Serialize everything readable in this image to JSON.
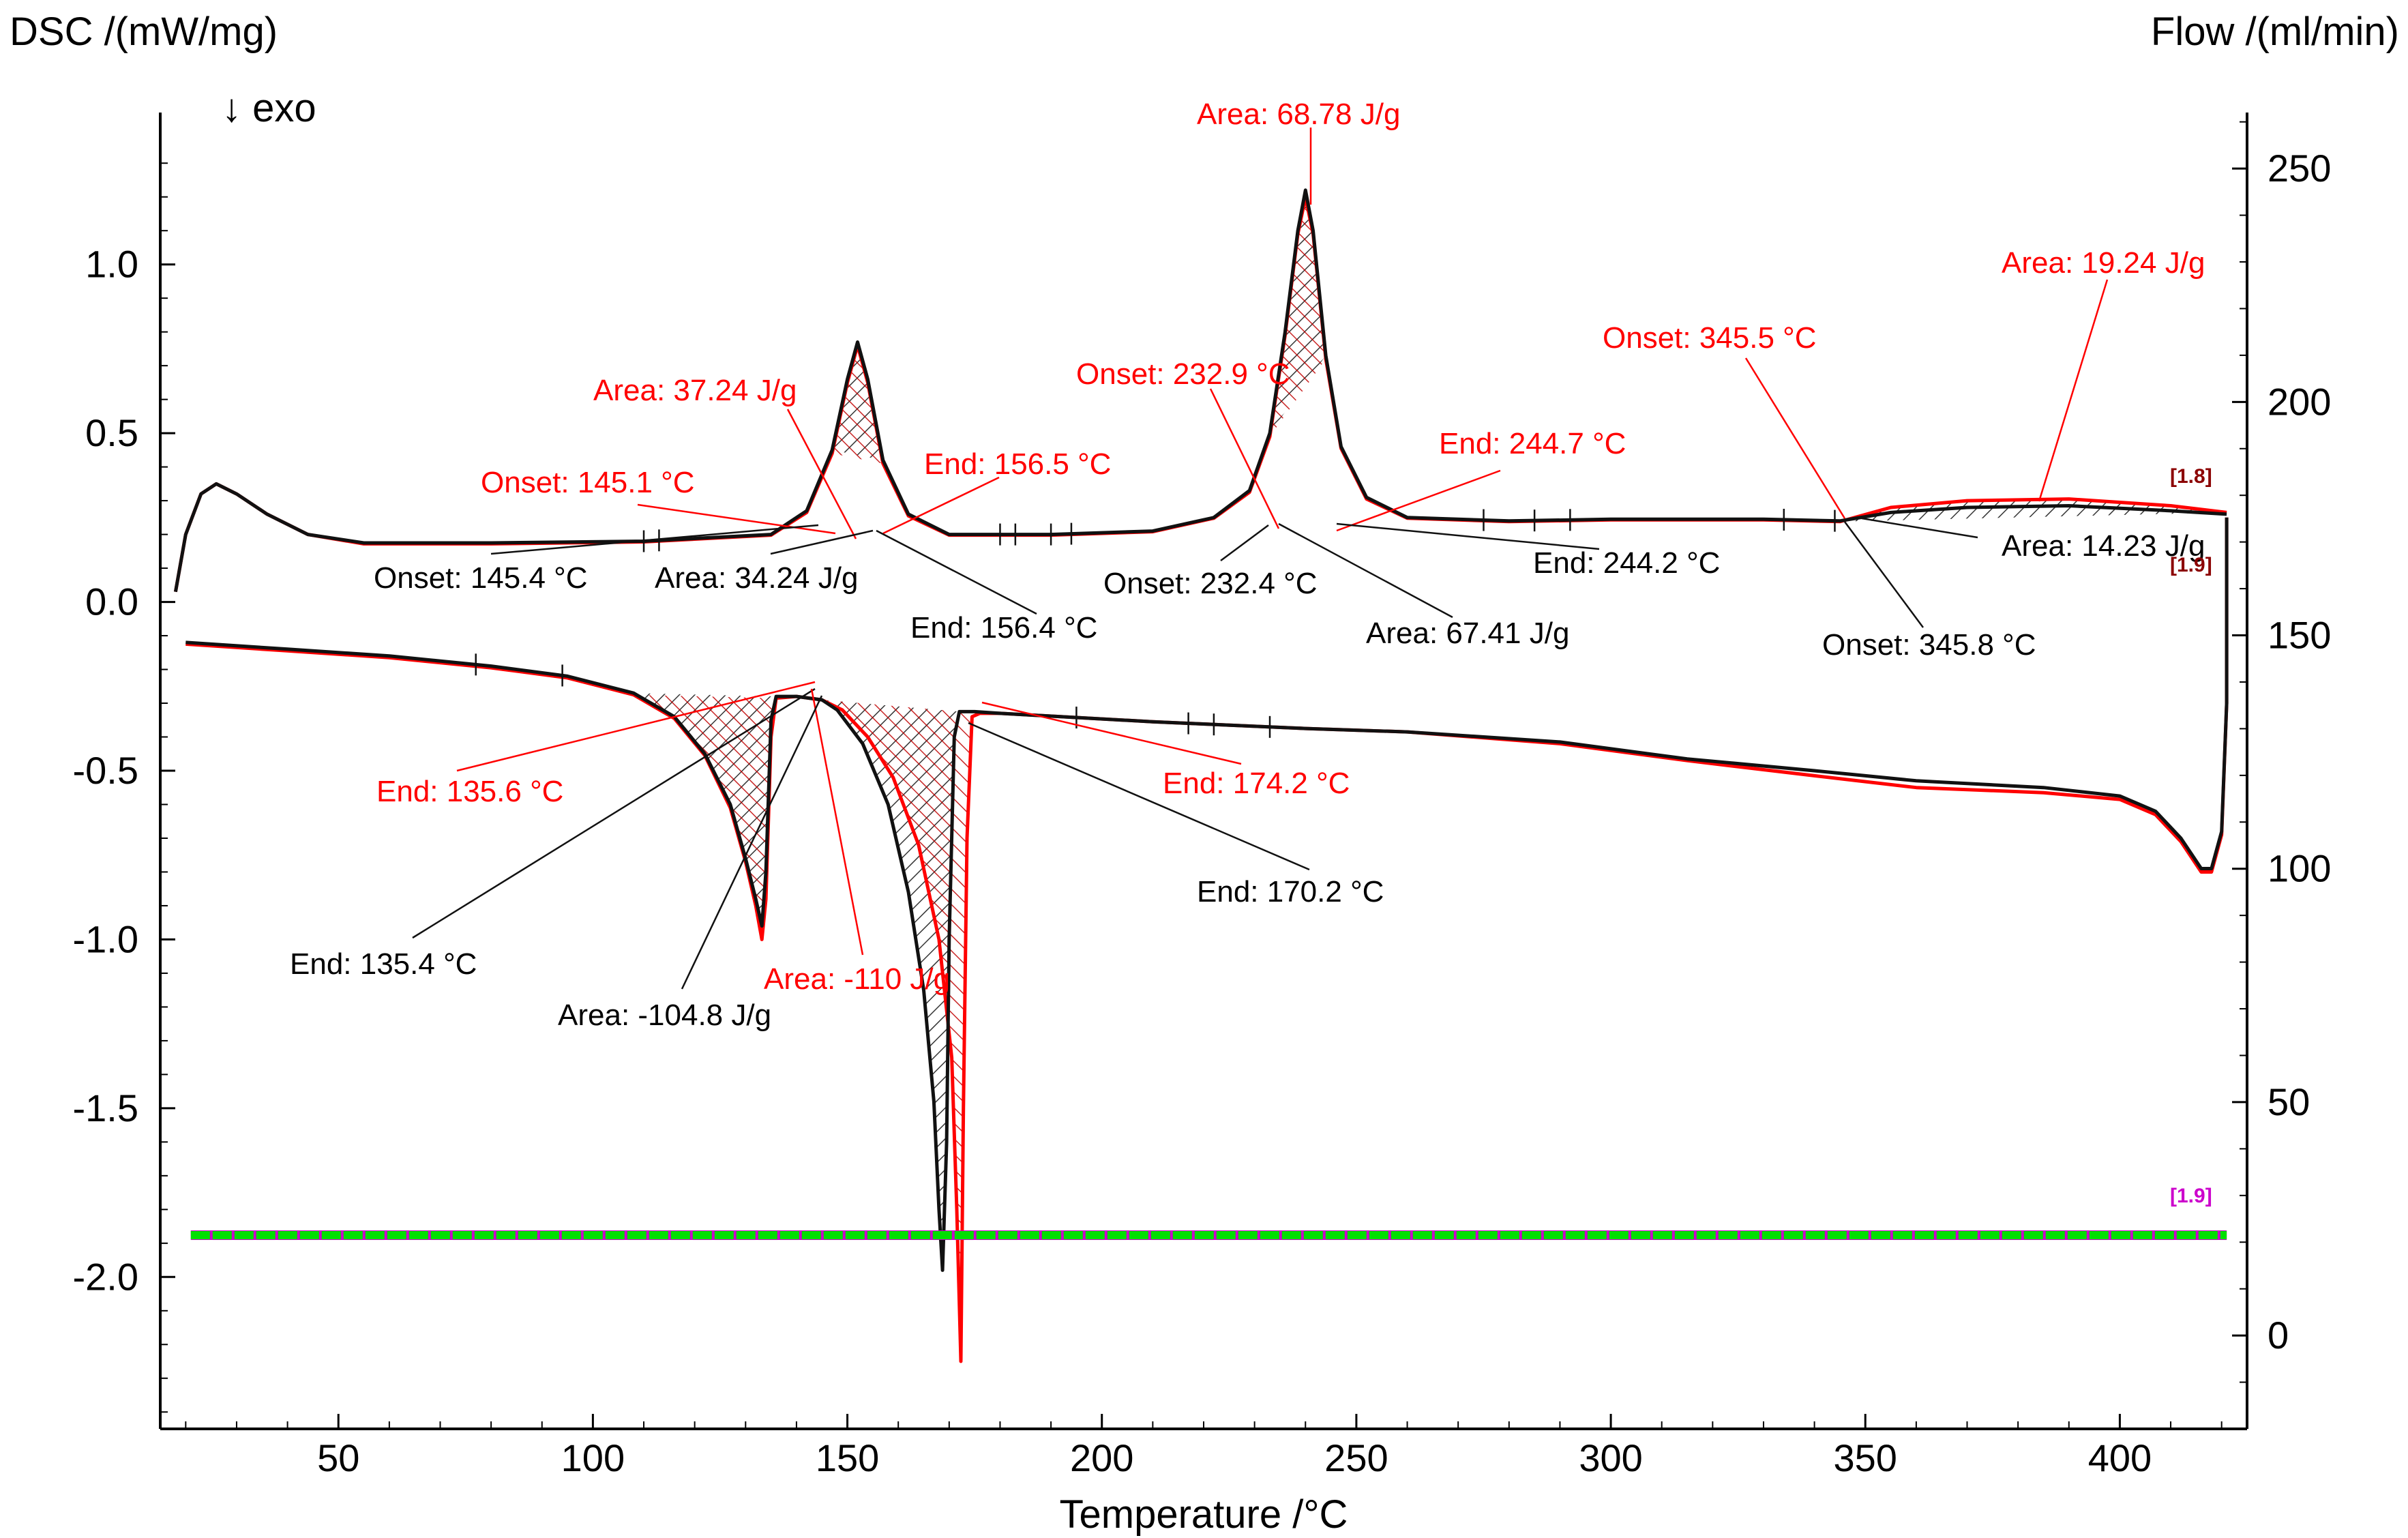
{
  "chart_data": {
    "type": "line",
    "title": "",
    "xlabel": "Temperature /°C",
    "ylabel_left": "DSC /(mW/mg)",
    "ylabel_right": "Flow /(ml/min)",
    "exo_marker": "↓ exo",
    "xlim": [
      15,
      425
    ],
    "ylim_left": [
      -2.45,
      1.45
    ],
    "ylim_right": [
      -20,
      262
    ],
    "x_ticks": [
      "50",
      "100",
      "150",
      "200",
      "250",
      "300",
      "350",
      "400"
    ],
    "x_tick_values": [
      50,
      100,
      150,
      200,
      250,
      300,
      350,
      400
    ],
    "y_left_ticks": [
      "1.0",
      "0.5",
      "0.0",
      "-0.5",
      "-1.0",
      "-1.5",
      "-2.0"
    ],
    "y_left_tick_values": [
      1.0,
      0.5,
      0.0,
      -0.5,
      -1.0,
      -1.5,
      -2.0
    ],
    "y_right_ticks": [
      "250",
      "200",
      "150",
      "100",
      "50",
      "0"
    ],
    "y_right_tick_values": [
      250,
      200,
      150,
      100,
      50,
      0
    ],
    "colors": {
      "black": "#111111",
      "red": "#ff0000",
      "green": "#00e000",
      "magenta": "#ff00ff"
    },
    "series": [
      {
        "name": "heating-black",
        "color": "#111111",
        "points": [
          [
            18,
            0.03
          ],
          [
            20,
            0.2
          ],
          [
            23,
            0.32
          ],
          [
            26,
            0.35
          ],
          [
            30,
            0.32
          ],
          [
            36,
            0.26
          ],
          [
            44,
            0.2
          ],
          [
            55,
            0.175
          ],
          [
            80,
            0.175
          ],
          [
            110,
            0.18
          ],
          [
            135,
            0.2
          ],
          [
            142,
            0.27
          ],
          [
            147,
            0.45
          ],
          [
            150,
            0.66
          ],
          [
            152,
            0.77
          ],
          [
            154,
            0.66
          ],
          [
            157,
            0.42
          ],
          [
            162,
            0.26
          ],
          [
            170,
            0.2
          ],
          [
            190,
            0.2
          ],
          [
            210,
            0.21
          ],
          [
            222,
            0.25
          ],
          [
            229,
            0.33
          ],
          [
            233,
            0.5
          ],
          [
            236,
            0.8
          ],
          [
            238.5,
            1.1
          ],
          [
            240,
            1.22
          ],
          [
            241.5,
            1.1
          ],
          [
            244,
            0.73
          ],
          [
            247,
            0.46
          ],
          [
            252,
            0.31
          ],
          [
            260,
            0.25
          ],
          [
            280,
            0.24
          ],
          [
            300,
            0.245
          ],
          [
            330,
            0.245
          ],
          [
            345,
            0.24
          ],
          [
            355,
            0.265
          ],
          [
            370,
            0.28
          ],
          [
            390,
            0.285
          ],
          [
            410,
            0.27
          ],
          [
            421,
            0.26
          ]
        ]
      },
      {
        "name": "heating-red",
        "color": "#ff0000",
        "points": [
          [
            18,
            0.03
          ],
          [
            20,
            0.2
          ],
          [
            23,
            0.32
          ],
          [
            26,
            0.35
          ],
          [
            30,
            0.32
          ],
          [
            36,
            0.26
          ],
          [
            44,
            0.2
          ],
          [
            55,
            0.172
          ],
          [
            80,
            0.172
          ],
          [
            110,
            0.178
          ],
          [
            135,
            0.198
          ],
          [
            142,
            0.265
          ],
          [
            147,
            0.44
          ],
          [
            150,
            0.65
          ],
          [
            152,
            0.76
          ],
          [
            154,
            0.65
          ],
          [
            157,
            0.41
          ],
          [
            162,
            0.255
          ],
          [
            170,
            0.198
          ],
          [
            190,
            0.198
          ],
          [
            210,
            0.208
          ],
          [
            222,
            0.248
          ],
          [
            229,
            0.325
          ],
          [
            233,
            0.49
          ],
          [
            236,
            0.79
          ],
          [
            238.5,
            1.09
          ],
          [
            240,
            1.2
          ],
          [
            241.5,
            1.09
          ],
          [
            244,
            0.72
          ],
          [
            247,
            0.455
          ],
          [
            252,
            0.305
          ],
          [
            260,
            0.248
          ],
          [
            280,
            0.238
          ],
          [
            300,
            0.243
          ],
          [
            330,
            0.243
          ],
          [
            345,
            0.238
          ],
          [
            355,
            0.28
          ],
          [
            370,
            0.3
          ],
          [
            390,
            0.305
          ],
          [
            410,
            0.285
          ],
          [
            421,
            0.265
          ]
        ]
      },
      {
        "name": "cooling-black",
        "color": "#111111",
        "points": [
          [
            421,
            0.25
          ],
          [
            421,
            -0.3
          ],
          [
            420,
            -0.68
          ],
          [
            418,
            -0.79
          ],
          [
            416,
            -0.79
          ],
          [
            412,
            -0.7
          ],
          [
            407,
            -0.62
          ],
          [
            400,
            -0.575
          ],
          [
            385,
            -0.55
          ],
          [
            360,
            -0.53
          ],
          [
            340,
            -0.5
          ],
          [
            315,
            -0.465
          ],
          [
            290,
            -0.415
          ],
          [
            260,
            -0.385
          ],
          [
            240,
            -0.375
          ],
          [
            210,
            -0.355
          ],
          [
            180,
            -0.33
          ],
          [
            175,
            -0.325
          ],
          [
            172,
            -0.325
          ],
          [
            171,
            -0.4
          ],
          [
            170,
            -1.0
          ],
          [
            169.5,
            -1.6
          ],
          [
            168.7,
            -1.98
          ],
          [
            168,
            -1.8
          ],
          [
            167,
            -1.48
          ],
          [
            165,
            -1.15
          ],
          [
            162,
            -0.86
          ],
          [
            158,
            -0.6
          ],
          [
            153,
            -0.42
          ],
          [
            148,
            -0.32
          ],
          [
            145,
            -0.29
          ],
          [
            140,
            -0.28
          ],
          [
            136,
            -0.28
          ],
          [
            135,
            -0.35
          ],
          [
            134,
            -0.8
          ],
          [
            133.2,
            -0.96
          ],
          [
            132,
            -0.88
          ],
          [
            130,
            -0.76
          ],
          [
            127,
            -0.6
          ],
          [
            122,
            -0.45
          ],
          [
            116,
            -0.34
          ],
          [
            108,
            -0.27
          ],
          [
            95,
            -0.22
          ],
          [
            80,
            -0.19
          ],
          [
            60,
            -0.16
          ],
          [
            40,
            -0.14
          ],
          [
            20,
            -0.12
          ]
        ]
      },
      {
        "name": "cooling-red",
        "color": "#ff0000",
        "points": [
          [
            421,
            0.25
          ],
          [
            421,
            -0.3
          ],
          [
            420,
            -0.69
          ],
          [
            418,
            -0.8
          ],
          [
            416,
            -0.8
          ],
          [
            412,
            -0.71
          ],
          [
            407,
            -0.63
          ],
          [
            400,
            -0.585
          ],
          [
            385,
            -0.565
          ],
          [
            360,
            -0.55
          ],
          [
            340,
            -0.515
          ],
          [
            315,
            -0.47
          ],
          [
            290,
            -0.42
          ],
          [
            260,
            -0.385
          ],
          [
            240,
            -0.375
          ],
          [
            210,
            -0.355
          ],
          [
            180,
            -0.33
          ],
          [
            176,
            -0.33
          ],
          [
            174.5,
            -0.34
          ],
          [
            173.5,
            -0.7
          ],
          [
            172.8,
            -1.5
          ],
          [
            172.3,
            -2.25
          ],
          [
            171.5,
            -1.8
          ],
          [
            170.5,
            -1.35
          ],
          [
            168,
            -1.0
          ],
          [
            164,
            -0.72
          ],
          [
            159,
            -0.52
          ],
          [
            154,
            -0.4
          ],
          [
            149,
            -0.32
          ],
          [
            145,
            -0.29
          ],
          [
            140,
            -0.28
          ],
          [
            136,
            -0.285
          ],
          [
            135,
            -0.4
          ],
          [
            134,
            -0.88
          ],
          [
            133.2,
            -1.0
          ],
          [
            132,
            -0.9
          ],
          [
            130,
            -0.77
          ],
          [
            127,
            -0.61
          ],
          [
            122,
            -0.455
          ],
          [
            116,
            -0.345
          ],
          [
            108,
            -0.275
          ],
          [
            95,
            -0.225
          ],
          [
            80,
            -0.195
          ],
          [
            60,
            -0.165
          ],
          [
            40,
            -0.145
          ],
          [
            20,
            -0.125
          ]
        ]
      }
    ],
    "flow_series": [
      {
        "name": "flow-green",
        "color": "#00e000",
        "y_right": 21.5,
        "x_range": [
          21,
          421
        ]
      }
    ],
    "annotations": [
      {
        "text": "Area: 68.78 J/g",
        "color": "red"
      },
      {
        "text": "Area: 19.24 J/g",
        "color": "red"
      },
      {
        "text": "Onset: 345.5 °C",
        "color": "red"
      },
      {
        "text": "Area: 37.24 J/g",
        "color": "red"
      },
      {
        "text": "Onset: 232.9 °C",
        "color": "red"
      },
      {
        "text": "End: 244.7 °C",
        "color": "red"
      },
      {
        "text": "End: 156.5 °C",
        "color": "red"
      },
      {
        "text": "Onset: 145.1 °C",
        "color": "red"
      },
      {
        "text": "Onset: 145.4 °C",
        "color": "black"
      },
      {
        "text": "Area: 34.24 J/g",
        "color": "black"
      },
      {
        "text": "End: 156.4 °C",
        "color": "black"
      },
      {
        "text": "Onset: 232.4 °C",
        "color": "black"
      },
      {
        "text": "End: 244.2 °C",
        "color": "black"
      },
      {
        "text": "Area: 67.41 J/g",
        "color": "black"
      },
      {
        "text": "Area: 14.23 J/g",
        "color": "black"
      },
      {
        "text": "Onset: 345.8 °C",
        "color": "black"
      },
      {
        "text": "End: 135.6 °C",
        "color": "red"
      },
      {
        "text": "End: 174.2 °C",
        "color": "red"
      },
      {
        "text": "End: 170.2 °C",
        "color": "black"
      },
      {
        "text": "End: 135.4 °C",
        "color": "black"
      },
      {
        "text": "Area: -110 J/g",
        "color": "red"
      },
      {
        "text": "Area: -104.8 J/g",
        "color": "black"
      }
    ],
    "segment_flags": [
      "[1.8]",
      "[1.9]",
      "[1.9]"
    ]
  }
}
